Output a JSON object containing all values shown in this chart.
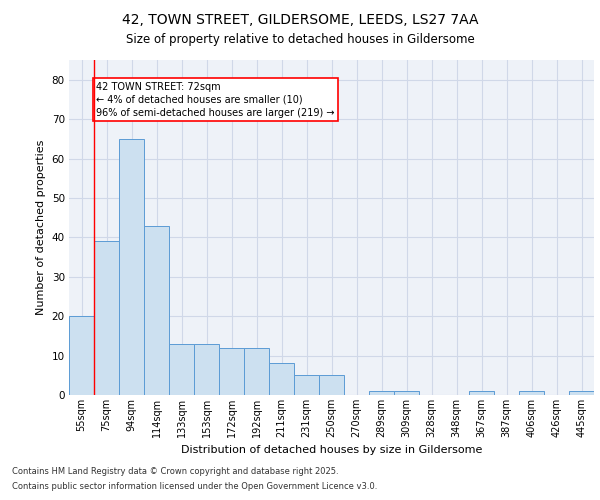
{
  "title_line1": "42, TOWN STREET, GILDERSOME, LEEDS, LS27 7AA",
  "title_line2": "Size of property relative to detached houses in Gildersome",
  "xlabel": "Distribution of detached houses by size in Gildersome",
  "ylabel": "Number of detached properties",
  "categories": [
    "55sqm",
    "75sqm",
    "94sqm",
    "114sqm",
    "133sqm",
    "153sqm",
    "172sqm",
    "192sqm",
    "211sqm",
    "231sqm",
    "250sqm",
    "270sqm",
    "289sqm",
    "309sqm",
    "328sqm",
    "348sqm",
    "367sqm",
    "387sqm",
    "406sqm",
    "426sqm",
    "445sqm"
  ],
  "values": [
    20,
    39,
    65,
    43,
    13,
    13,
    12,
    12,
    8,
    5,
    5,
    0,
    1,
    1,
    0,
    0,
    1,
    0,
    1,
    0,
    1
  ],
  "bar_color": "#cce0f0",
  "bar_edge_color": "#5b9bd5",
  "red_line_x": 0.5,
  "annotation_line1": "42 TOWN STREET: 72sqm",
  "annotation_line2": "← 4% of detached houses are smaller (10)",
  "annotation_line3": "96% of semi-detached houses are larger (219) →",
  "ylim": [
    0,
    85
  ],
  "yticks": [
    0,
    10,
    20,
    30,
    40,
    50,
    60,
    70,
    80
  ],
  "grid_color": "#d0d8e8",
  "bg_color": "#eef2f8",
  "footnote1": "Contains HM Land Registry data © Crown copyright and database right 2025.",
  "footnote2": "Contains public sector information licensed under the Open Government Licence v3.0."
}
